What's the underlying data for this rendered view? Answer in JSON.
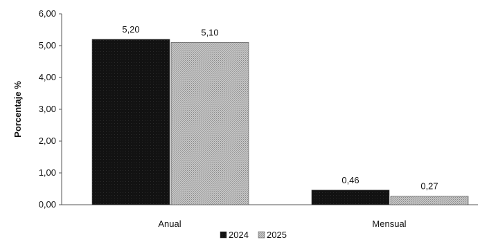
{
  "chart_data": {
    "type": "bar",
    "categories": [
      "Anual",
      "Mensual"
    ],
    "series": [
      {
        "name": "2024",
        "values": [
          5.2,
          0.46
        ],
        "labels": [
          "5,20",
          "0,46"
        ],
        "color": "#121212"
      },
      {
        "name": "2025",
        "values": [
          5.1,
          0.27
        ],
        "labels": [
          "5,10",
          "0,27"
        ],
        "color": "#b8b8b8"
      }
    ],
    "ylabel": "Porcentaje %",
    "xlabel": "",
    "title": "",
    "ylim": [
      0,
      6
    ],
    "yticks": [
      {
        "value": 0,
        "label": "0,00"
      },
      {
        "value": 1,
        "label": "1,00"
      },
      {
        "value": 2,
        "label": "2,00"
      },
      {
        "value": 3,
        "label": "3,00"
      },
      {
        "value": 4,
        "label": "4,00"
      },
      {
        "value": 5,
        "label": "5,00"
      },
      {
        "value": 6,
        "label": "6,00"
      }
    ],
    "grid": false,
    "legend_position": "bottom-center"
  }
}
